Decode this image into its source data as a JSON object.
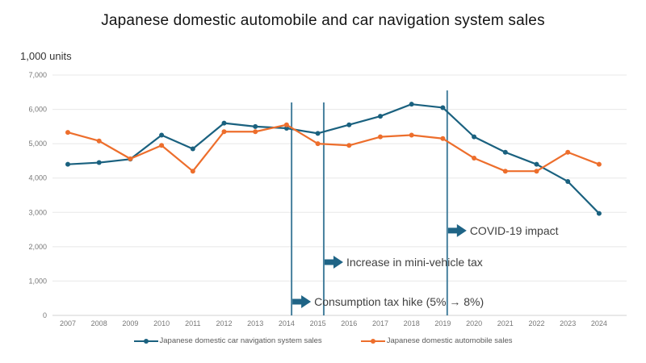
{
  "title": "Japanese domestic automobile and car navigation system sales",
  "y_axis_unit_label": "1,000 units",
  "colors": {
    "nav_series": "#1A617F",
    "auto_series": "#ED6E2C",
    "event_line": "#47809E",
    "arrow": "#1F6486",
    "grid": "#E8E8E8",
    "axis": "#D0D0D0",
    "tick_text": "#777777",
    "annotation_text": "#3F3F3F",
    "legend_text": "#5A5A5A"
  },
  "chart_data": {
    "type": "line",
    "title": "Japanese domestic automobile and car navigation system sales",
    "ylabel": "1,000 units",
    "ylim": [
      0,
      7000
    ],
    "y_ticks": [
      0,
      1000,
      2000,
      3000,
      4000,
      5000,
      6000,
      7000
    ],
    "grid": true,
    "legend_position": "bottom",
    "x": [
      2007,
      2008,
      2009,
      2010,
      2011,
      2012,
      2013,
      2014,
      2015,
      2016,
      2017,
      2018,
      2019,
      2020,
      2021,
      2022,
      2023,
      2024
    ],
    "series": [
      {
        "id": "car-navigation",
        "name": "Japanese domestic car navigation system sales",
        "color_key": "nav_series",
        "values": [
          4400,
          4450,
          4550,
          5250,
          4850,
          5600,
          5500,
          5450,
          5300,
          5550,
          5800,
          6150,
          6050,
          5200,
          4750,
          4400,
          3900,
          2970
        ]
      },
      {
        "id": "automobile",
        "name": "Japanese domestic automobile sales",
        "color_key": "auto_series",
        "values": [
          5330,
          5080,
          4560,
          4950,
          4200,
          5350,
          5350,
          5550,
          5000,
          4950,
          5200,
          5250,
          5150,
          4580,
          4200,
          4200,
          4750,
          4400
        ]
      }
    ]
  },
  "annotations": [
    {
      "label": "Consumption tax hike (5% → 8%)",
      "year": 2014.16,
      "line_top_value": 6200,
      "callout_value": 400
    },
    {
      "label": "Increase in mini-vehicle tax",
      "year": 2015.19,
      "line_top_value": 6200,
      "callout_value": 1550
    },
    {
      "label": "COVID-19 impact",
      "year": 2019.14,
      "line_top_value": 6550,
      "callout_value": 2470
    }
  ]
}
